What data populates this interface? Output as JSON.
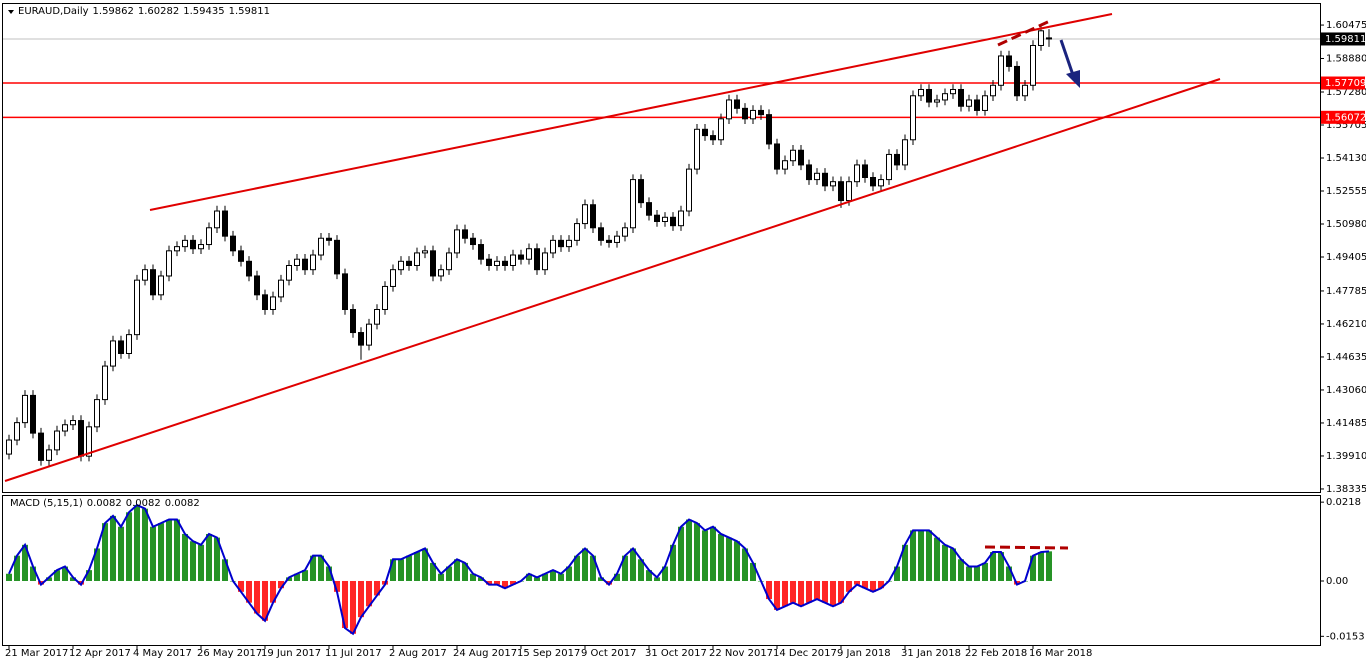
{
  "chart_data": [
    {
      "type": "candlestick",
      "symbol": "EURAUD,Daily",
      "header_values": [
        1.59862,
        1.60282,
        1.59435,
        1.59811
      ],
      "categories": [
        "21 Mar 2017",
        null,
        null,
        null,
        null,
        null,
        null,
        null,
        "12 Apr 2017",
        null,
        null,
        null,
        null,
        null,
        null,
        null,
        "4 May 2017",
        null,
        null,
        null,
        null,
        null,
        null,
        null,
        "26 May 2017",
        null,
        null,
        null,
        null,
        null,
        null,
        null,
        "19 Jun 2017",
        null,
        null,
        null,
        null,
        null,
        null,
        null,
        "11 Jul 2017",
        null,
        null,
        null,
        null,
        null,
        null,
        null,
        "2 Aug 2017",
        null,
        null,
        null,
        null,
        null,
        null,
        null,
        "24 Aug 2017",
        null,
        null,
        null,
        null,
        null,
        null,
        null,
        "15 Sep 2017",
        null,
        null,
        null,
        null,
        null,
        null,
        null,
        "9 Oct 2017",
        null,
        null,
        null,
        null,
        null,
        null,
        null,
        "31 Oct 2017",
        null,
        null,
        null,
        null,
        null,
        null,
        null,
        "22 Nov 2017",
        null,
        null,
        null,
        null,
        null,
        null,
        null,
        "14 Dec 2017",
        null,
        null,
        null,
        null,
        null,
        null,
        null,
        "9 Jan 2018",
        null,
        null,
        null,
        null,
        null,
        null,
        null,
        "31 Jan 2018",
        null,
        null,
        null,
        null,
        null,
        null,
        null,
        "22 Feb 2018",
        null,
        null,
        null,
        null,
        null,
        null,
        null,
        "16 Mar 2018",
        null,
        null
      ],
      "ohlc": [
        [
          1.4,
          1.4092,
          1.3975,
          1.4067
        ],
        [
          1.4067,
          1.4175,
          1.4042,
          1.415
        ],
        [
          1.415,
          1.4305,
          1.4125,
          1.428
        ],
        [
          1.428,
          1.4305,
          1.4075,
          1.41
        ],
        [
          1.41,
          1.4125,
          1.3945,
          1.397
        ],
        [
          1.397,
          1.4045,
          1.3945,
          1.402
        ],
        [
          1.402,
          1.4135,
          1.3995,
          1.411
        ],
        [
          1.411,
          1.4165,
          1.4085,
          1.414
        ],
        [
          1.414,
          1.4185,
          1.4115,
          1.416
        ],
        [
          1.416,
          1.4185,
          1.3965,
          1.399
        ],
        [
          1.399,
          1.4155,
          1.3965,
          1.413
        ],
        [
          1.413,
          1.4285,
          1.4105,
          1.426
        ],
        [
          1.426,
          1.4445,
          1.4235,
          1.442
        ],
        [
          1.442,
          1.4565,
          1.4395,
          1.454
        ],
        [
          1.454,
          1.4565,
          1.4455,
          1.448
        ],
        [
          1.448,
          1.4595,
          1.4455,
          1.457
        ],
        [
          1.457,
          1.4855,
          1.4545,
          1.483
        ],
        [
          1.483,
          1.4905,
          1.4805,
          1.488
        ],
        [
          1.488,
          1.4905,
          1.4735,
          1.476
        ],
        [
          1.476,
          1.4875,
          1.4735,
          1.485
        ],
        [
          1.485,
          1.4995,
          1.4825,
          1.497
        ],
        [
          1.497,
          1.5015,
          1.4945,
          1.499
        ],
        [
          1.499,
          1.5045,
          1.4965,
          1.502
        ],
        [
          1.502,
          1.5045,
          1.4955,
          1.498
        ],
        [
          1.498,
          1.5025,
          1.4955,
          1.5
        ],
        [
          1.5,
          1.5105,
          1.4975,
          1.508
        ],
        [
          1.508,
          1.5185,
          1.5055,
          1.516
        ],
        [
          1.516,
          1.5185,
          1.5015,
          1.504
        ],
        [
          1.504,
          1.5065,
          1.4945,
          1.497
        ],
        [
          1.497,
          1.4995,
          1.4895,
          1.492
        ],
        [
          1.492,
          1.4945,
          1.4825,
          1.485
        ],
        [
          1.485,
          1.4875,
          1.4735,
          1.476
        ],
        [
          1.476,
          1.4785,
          1.4665,
          1.469
        ],
        [
          1.469,
          1.4775,
          1.4665,
          1.475
        ],
        [
          1.475,
          1.4855,
          1.4725,
          1.483
        ],
        [
          1.483,
          1.4925,
          1.4805,
          1.49
        ],
        [
          1.49,
          1.4955,
          1.4875,
          1.493
        ],
        [
          1.493,
          1.4955,
          1.4855,
          1.488
        ],
        [
          1.488,
          1.4975,
          1.4855,
          1.495
        ],
        [
          1.495,
          1.5055,
          1.4925,
          1.503
        ],
        [
          1.503,
          1.5055,
          1.4995,
          1.502
        ],
        [
          1.502,
          1.5045,
          1.4835,
          1.486
        ],
        [
          1.486,
          1.4885,
          1.4665,
          1.469
        ],
        [
          1.469,
          1.4715,
          1.4555,
          1.458
        ],
        [
          1.458,
          1.4605,
          1.445,
          1.452
        ],
        [
          1.452,
          1.4645,
          1.4495,
          1.462
        ],
        [
          1.462,
          1.4715,
          1.4595,
          1.469
        ],
        [
          1.469,
          1.4825,
          1.4665,
          1.48
        ],
        [
          1.48,
          1.4905,
          1.4775,
          1.488
        ],
        [
          1.488,
          1.4945,
          1.4855,
          1.492
        ],
        [
          1.492,
          1.4945,
          1.4875,
          1.49
        ],
        [
          1.49,
          1.4985,
          1.4875,
          1.496
        ],
        [
          1.496,
          1.4995,
          1.4935,
          1.497
        ],
        [
          1.497,
          1.4995,
          1.4825,
          1.485
        ],
        [
          1.485,
          1.4905,
          1.4825,
          1.488
        ],
        [
          1.488,
          1.4985,
          1.4855,
          1.496
        ],
        [
          1.496,
          1.5095,
          1.4935,
          1.507
        ],
        [
          1.507,
          1.5095,
          1.5005,
          1.503
        ],
        [
          1.503,
          1.5055,
          1.4975,
          1.5
        ],
        [
          1.5,
          1.5025,
          1.4905,
          1.493
        ],
        [
          1.493,
          1.4955,
          1.4875,
          1.49
        ],
        [
          1.49,
          1.4945,
          1.4875,
          1.492
        ],
        [
          1.492,
          1.4945,
          1.4875,
          1.49
        ],
        [
          1.49,
          1.4975,
          1.4875,
          1.495
        ],
        [
          1.495,
          1.4975,
          1.4905,
          1.493
        ],
        [
          1.493,
          1.5005,
          1.4905,
          1.498
        ],
        [
          1.498,
          1.5005,
          1.4855,
          1.488
        ],
        [
          1.488,
          1.4985,
          1.4855,
          1.496
        ],
        [
          1.496,
          1.5045,
          1.4935,
          1.502
        ],
        [
          1.502,
          1.5045,
          1.4965,
          1.499
        ],
        [
          1.499,
          1.5045,
          1.4965,
          1.502
        ],
        [
          1.502,
          1.5125,
          1.4995,
          1.51
        ],
        [
          1.51,
          1.5215,
          1.5075,
          1.519
        ],
        [
          1.519,
          1.5215,
          1.5055,
          1.508
        ],
        [
          1.508,
          1.5105,
          1.4995,
          1.502
        ],
        [
          1.502,
          1.5045,
          1.4985,
          1.501
        ],
        [
          1.501,
          1.5065,
          1.4985,
          1.504
        ],
        [
          1.504,
          1.5105,
          1.5015,
          1.508
        ],
        [
          1.508,
          1.5335,
          1.5055,
          1.531
        ],
        [
          1.531,
          1.5335,
          1.5175,
          1.52
        ],
        [
          1.52,
          1.5225,
          1.5115,
          1.514
        ],
        [
          1.514,
          1.5165,
          1.5085,
          1.511
        ],
        [
          1.511,
          1.5155,
          1.5085,
          1.513
        ],
        [
          1.513,
          1.5155,
          1.5065,
          1.509
        ],
        [
          1.509,
          1.5185,
          1.5065,
          1.516
        ],
        [
          1.516,
          1.5385,
          1.5135,
          1.536
        ],
        [
          1.536,
          1.5575,
          1.5335,
          1.555
        ],
        [
          1.555,
          1.5575,
          1.5495,
          1.552
        ],
        [
          1.552,
          1.5545,
          1.5475,
          1.55
        ],
        [
          1.55,
          1.5625,
          1.5475,
          1.56
        ],
        [
          1.56,
          1.5715,
          1.5575,
          1.569
        ],
        [
          1.569,
          1.5715,
          1.5625,
          1.565
        ],
        [
          1.565,
          1.5675,
          1.5575,
          1.56
        ],
        [
          1.56,
          1.5665,
          1.5575,
          1.564
        ],
        [
          1.564,
          1.5665,
          1.5595,
          1.562
        ],
        [
          1.562,
          1.5645,
          1.5455,
          1.548
        ],
        [
          1.548,
          1.5505,
          1.5335,
          1.536
        ],
        [
          1.536,
          1.5425,
          1.5335,
          1.54
        ],
        [
          1.54,
          1.5475,
          1.5375,
          1.545
        ],
        [
          1.545,
          1.5475,
          1.5355,
          1.538
        ],
        [
          1.538,
          1.5405,
          1.5285,
          1.531
        ],
        [
          1.531,
          1.5365,
          1.5285,
          1.534
        ],
        [
          1.534,
          1.5365,
          1.5255,
          1.528
        ],
        [
          1.528,
          1.5325,
          1.5255,
          1.53
        ],
        [
          1.53,
          1.5325,
          1.5175,
          1.521
        ],
        [
          1.521,
          1.5325,
          1.5185,
          1.53
        ],
        [
          1.53,
          1.5405,
          1.5275,
          1.538
        ],
        [
          1.538,
          1.5405,
          1.5295,
          1.532
        ],
        [
          1.532,
          1.5345,
          1.5255,
          1.528
        ],
        [
          1.528,
          1.5335,
          1.5255,
          1.531
        ],
        [
          1.531,
          1.5455,
          1.5285,
          1.543
        ],
        [
          1.543,
          1.5455,
          1.5355,
          1.538
        ],
        [
          1.538,
          1.5525,
          1.5355,
          1.55
        ],
        [
          1.55,
          1.5735,
          1.5475,
          1.571
        ],
        [
          1.571,
          1.5765,
          1.5685,
          1.574
        ],
        [
          1.574,
          1.5765,
          1.5655,
          1.568
        ],
        [
          1.568,
          1.5715,
          1.5655,
          1.569
        ],
        [
          1.569,
          1.5745,
          1.5665,
          1.572
        ],
        [
          1.572,
          1.5765,
          1.5695,
          1.574
        ],
        [
          1.574,
          1.5765,
          1.5635,
          1.566
        ],
        [
          1.566,
          1.5715,
          1.5635,
          1.569
        ],
        [
          1.569,
          1.5715,
          1.5615,
          1.564
        ],
        [
          1.564,
          1.5735,
          1.5615,
          1.571
        ],
        [
          1.571,
          1.5785,
          1.5685,
          1.576
        ],
        [
          1.576,
          1.5925,
          1.5735,
          1.59
        ],
        [
          1.59,
          1.5925,
          1.5825,
          1.585
        ],
        [
          1.585,
          1.5875,
          1.5685,
          1.571
        ],
        [
          1.571,
          1.5785,
          1.5685,
          1.576
        ],
        [
          1.576,
          1.5975,
          1.5735,
          1.595
        ],
        [
          1.595,
          1.6045,
          1.5925,
          1.602
        ],
        [
          1.59862,
          1.60282,
          1.59435,
          1.59811
        ]
      ],
      "ylim": [
        1.3819,
        1.6148
      ],
      "yticks": [
        1.60475,
        {
          "value": 1.5888,
          "label": "1.58880"
        },
        {
          "value": 1.5728,
          "label": "1.57280"
        },
        1.55705,
        {
          "value": 1.5413,
          "label": "1.54130"
        },
        1.52555,
        {
          "value": 1.5098,
          "label": "1.50980"
        },
        1.49405,
        1.47785,
        {
          "value": 1.4621,
          "label": "1.46210"
        },
        1.44635,
        {
          "value": 1.4306,
          "label": "1.43060"
        },
        1.41485,
        {
          "value": 1.3991,
          "label": "1.39910"
        },
        1.38335
      ],
      "current_price": 1.59811,
      "levels": [
        1.57709,
        1.56072
      ],
      "up_color": "#ffffff",
      "down_color": "#000000",
      "level_color": "#ff0000",
      "current_color": "#000000"
    },
    {
      "type": "histogram",
      "title": "MACD (5,15,1)",
      "header_values": [
        0.0082,
        0.0082,
        0.0082
      ],
      "values": [
        0.002,
        0.007,
        0.01,
        0.004,
        -0.001,
        0.001,
        0.003,
        0.004,
        0.001,
        -0.001,
        0.003,
        0.009,
        0.016,
        0.018,
        0.015,
        0.019,
        0.021,
        0.02,
        0.015,
        0.016,
        0.017,
        0.017,
        0.013,
        0.011,
        0.01,
        0.013,
        0.012,
        0.006,
        0.0,
        -0.003,
        -0.006,
        -0.009,
        -0.011,
        -0.006,
        -0.002,
        0.001,
        0.002,
        0.003,
        0.007,
        0.007,
        0.004,
        -0.003,
        -0.013,
        -0.0146,
        -0.01,
        -0.007,
        -0.004,
        -0.001,
        0.006,
        0.006,
        0.007,
        0.008,
        0.009,
        0.005,
        0.002,
        0.004,
        0.006,
        0.005,
        0.002,
        0.001,
        -0.001,
        -0.001,
        -0.002,
        -0.001,
        0.0,
        0.002,
        0.001,
        0.002,
        0.003,
        0.002,
        0.004,
        0.007,
        0.009,
        0.007,
        0.001,
        -0.001,
        0.002,
        0.007,
        0.009,
        0.006,
        0.003,
        0.001,
        0.004,
        0.01,
        0.015,
        0.017,
        0.016,
        0.014,
        0.015,
        0.013,
        0.012,
        0.011,
        0.009,
        0.005,
        0.0,
        -0.005,
        -0.008,
        -0.007,
        -0.006,
        -0.007,
        -0.006,
        -0.005,
        -0.006,
        -0.007,
        -0.006,
        -0.003,
        -0.001,
        -0.002,
        -0.003,
        -0.002,
        0.0,
        0.004,
        0.01,
        0.014,
        0.014,
        0.014,
        0.012,
        0.01,
        0.009,
        0.006,
        0.004,
        0.004,
        0.005,
        0.008,
        0.008,
        0.004,
        -0.001,
        0.0,
        0.007,
        0.008,
        0.0082
      ],
      "ylim": [
        -0.0177,
        0.0235
      ],
      "yticks": [
        0.0218,
        {
          "value": 0,
          "label": "0.00"
        },
        -0.0153
      ],
      "positive_color": "#008000",
      "negative_color": "#ff0000",
      "line_color": "#0000cd"
    }
  ]
}
